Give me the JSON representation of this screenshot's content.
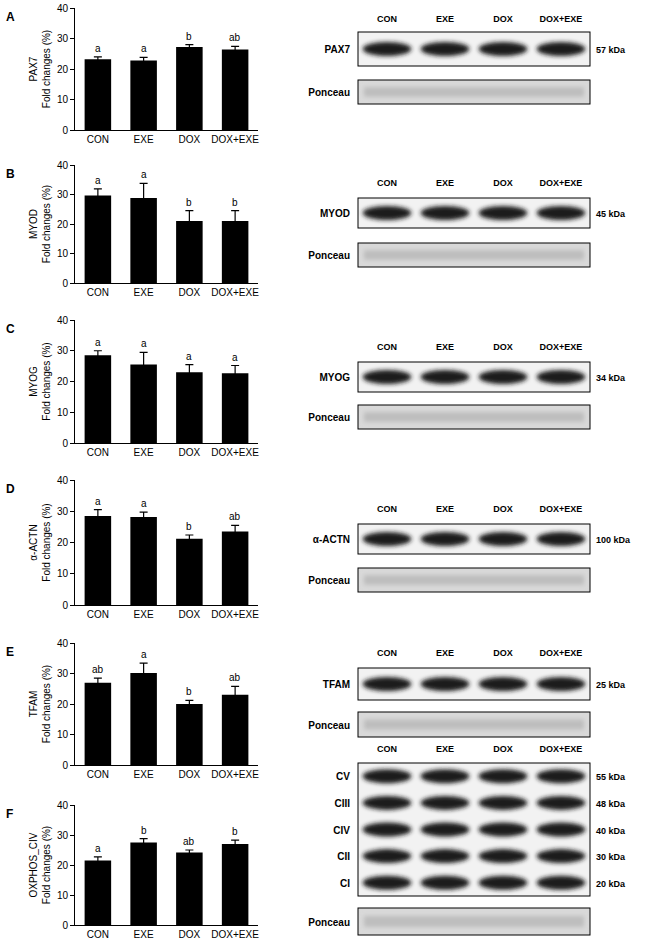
{
  "chart_data": [
    {
      "type": "bar",
      "panel": "A",
      "y_label": [
        "PAX7",
        "Fold changes (%)"
      ],
      "categories": [
        "CON",
        "EXE",
        "DOX",
        "DOX+EXE"
      ],
      "values": [
        23.2,
        22.8,
        27.2,
        26.4
      ],
      "errors": [
        0.8,
        1.0,
        0.8,
        1.0
      ],
      "significance": [
        "a",
        "a",
        "b",
        "ab"
      ],
      "color": "#000000",
      "ylim": [
        0,
        40
      ],
      "yticks": [
        0,
        10,
        20,
        30,
        40
      ],
      "grid": false
    },
    {
      "type": "bar",
      "panel": "B",
      "y_label": [
        "MYOD",
        "Fold changes (%)"
      ],
      "categories": [
        "CON",
        "EXE",
        "DOX",
        "DOX+EXE"
      ],
      "values": [
        29.7,
        28.8,
        21.0,
        21.0
      ],
      "errors": [
        2.2,
        5.0,
        3.5,
        3.5
      ],
      "significance": [
        "a",
        "a",
        "b",
        "b"
      ],
      "color": "#000000",
      "ylim": [
        0,
        40
      ],
      "yticks": [
        0,
        10,
        20,
        30,
        40
      ],
      "grid": false
    },
    {
      "type": "bar",
      "panel": "C",
      "y_label": [
        "MYOG",
        "Fold changes (%)"
      ],
      "categories": [
        "CON",
        "EXE",
        "DOX",
        "DOX+EXE"
      ],
      "values": [
        28.5,
        25.5,
        23.0,
        22.7
      ],
      "errors": [
        1.5,
        4.0,
        2.5,
        2.5
      ],
      "significance": [
        "a",
        "a",
        "a",
        "a"
      ],
      "color": "#000000",
      "ylim": [
        0,
        40
      ],
      "yticks": [
        0,
        10,
        20,
        30,
        40
      ],
      "grid": false
    },
    {
      "type": "bar",
      "panel": "D",
      "y_label": [
        "α-ACTN",
        "Fold changes (%)"
      ],
      "categories": [
        "CON",
        "EXE",
        "DOX",
        "DOX+EXE"
      ],
      "values": [
        28.5,
        28.2,
        21.2,
        23.5
      ],
      "errors": [
        2.0,
        1.5,
        1.2,
        2.0
      ],
      "significance": [
        "a",
        "a",
        "b",
        "ab"
      ],
      "color": "#000000",
      "ylim": [
        0,
        40
      ],
      "yticks": [
        0,
        10,
        20,
        30,
        40
      ],
      "grid": false
    },
    {
      "type": "bar",
      "panel": "E",
      "y_label": [
        "TFAM",
        "Fold changes (%)"
      ],
      "categories": [
        "CON",
        "EXE",
        "DOX",
        "DOX+EXE"
      ],
      "values": [
        27.0,
        30.2,
        20.0,
        23.0
      ],
      "errors": [
        1.5,
        3.2,
        1.2,
        2.8
      ],
      "significance": [
        "ab",
        "a",
        "b",
        "ab"
      ],
      "color": "#000000",
      "ylim": [
        0,
        40
      ],
      "yticks": [
        0,
        10,
        20,
        30,
        40
      ],
      "grid": false
    },
    {
      "type": "bar",
      "panel": "F",
      "y_label": [
        "OXPHOS_CIV",
        "Fold changes (%)"
      ],
      "categories": [
        "CON",
        "EXE",
        "DOX",
        "DOX+EXE"
      ],
      "values": [
        21.5,
        27.5,
        24.2,
        27.0
      ],
      "errors": [
        1.2,
        1.3,
        0.8,
        1.3
      ],
      "significance": [
        "a",
        "b",
        "ab",
        "b"
      ],
      "color": "#000000",
      "ylim": [
        0,
        40
      ],
      "yticks": [
        0,
        10,
        20,
        30,
        40
      ],
      "grid": false
    }
  ],
  "blots": [
    {
      "lanes": [
        "CON",
        "EXE",
        "DOX",
        "DOX+EXE"
      ],
      "bands": [
        {
          "label": "PAX7",
          "kda": "57 kDa"
        }
      ],
      "loading": "Ponceau"
    },
    {
      "lanes": [
        "CON",
        "EXE",
        "DOX",
        "DOX+EXE"
      ],
      "bands": [
        {
          "label": "MYOD",
          "kda": "45 kDa"
        }
      ],
      "loading": "Ponceau"
    },
    {
      "lanes": [
        "CON",
        "EXE",
        "DOX",
        "DOX+EXE"
      ],
      "bands": [
        {
          "label": "MYOG",
          "kda": "34 kDa"
        }
      ],
      "loading": "Ponceau"
    },
    {
      "lanes": [
        "CON",
        "EXE",
        "DOX",
        "DOX+EXE"
      ],
      "bands": [
        {
          "label": "α-ACTN",
          "kda": "100 kDa"
        }
      ],
      "loading": "Ponceau"
    },
    {
      "lanes": [
        "CON",
        "EXE",
        "DOX",
        "DOX+EXE"
      ],
      "bands": [
        {
          "label": "TFAM",
          "kda": "25 kDa"
        }
      ],
      "loading": "Ponceau"
    },
    {
      "lanes": [
        "CON",
        "EXE",
        "DOX",
        "DOX+EXE"
      ],
      "bands": [
        {
          "label": "CV",
          "kda": "55 kDa"
        },
        {
          "label": "CIII",
          "kda": "48 kDa"
        },
        {
          "label": "CIV",
          "kda": "40 kDa"
        },
        {
          "label": "CII",
          "kda": "30 kDa"
        },
        {
          "label": "CI",
          "kda": "20 kDa"
        }
      ],
      "loading": "Ponceau"
    }
  ]
}
